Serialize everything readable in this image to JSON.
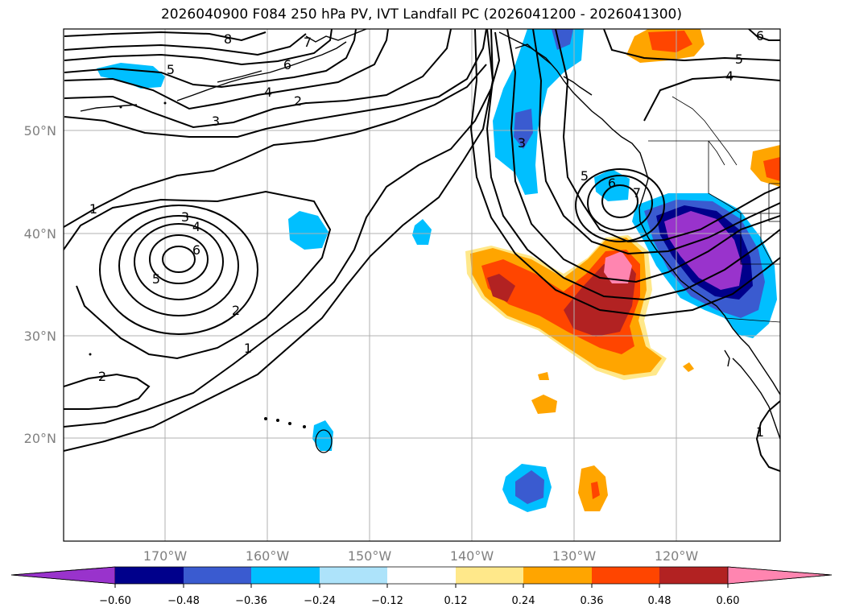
{
  "title": "2026040900 F084 250 hPa PV, IVT Landfall PC (2026041200 - 2026041300)",
  "latitude_labels": [
    "50°N",
    "40°N",
    "30°N",
    "20°N"
  ],
  "longitude_labels": [
    "170°W",
    "160°W",
    "150°W",
    "140°W",
    "130°W",
    "120°W"
  ],
  "colorbar": {
    "ticks": [
      "−0.60",
      "−0.48",
      "−0.36",
      "−0.24",
      "−0.12",
      "0.12",
      "0.24",
      "0.36",
      "0.48",
      "0.60"
    ],
    "colors": [
      "#9933cc",
      "#00008b",
      "#3a5bd0",
      "#00bfff",
      "#ade3fa",
      "#ffffff",
      "#ffe88a",
      "#ffa500",
      "#ff4500",
      "#b22222",
      "#ff85b0"
    ]
  },
  "contour_labels": [
    "8",
    "7",
    "5",
    "6",
    "4",
    "2",
    "3",
    "5",
    "4",
    "6",
    "5",
    "6",
    "7",
    "3",
    "1",
    "3",
    "4",
    "6",
    "5",
    "2",
    "1",
    "2",
    "1"
  ],
  "colors": {
    "grid": "#b0b0b0",
    "contour": "#000000",
    "coast": "#000000"
  }
}
